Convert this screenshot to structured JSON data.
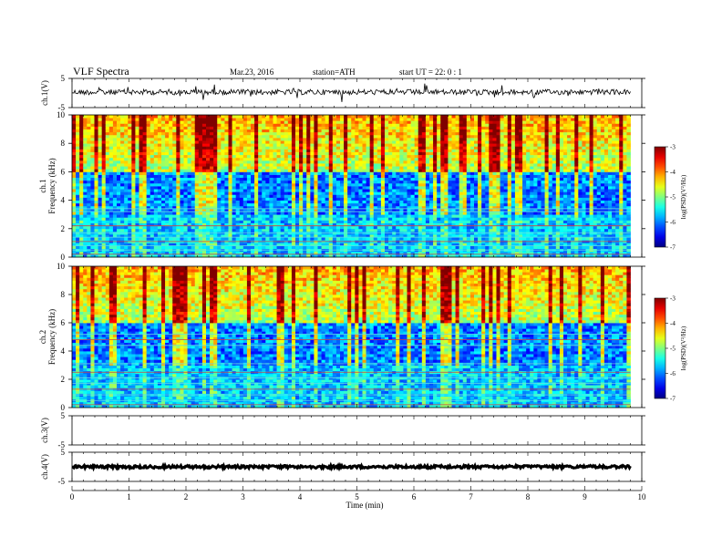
{
  "header": {
    "title": "VLF Spectra",
    "date": "Mar.23, 2016",
    "station": "station=ATH",
    "start": "start UT =  22: 0 : 1"
  },
  "chart_data": {
    "type": "heatmap",
    "x_axis": {
      "label": "Time (min)",
      "range": [
        0,
        10
      ],
      "ticks": [
        "0",
        "1",
        "2",
        "3",
        "4",
        "5",
        "6",
        "7",
        "8",
        "9",
        "10"
      ],
      "data_end": 9.8
    },
    "panels": [
      {
        "id": "ch1-wave",
        "type": "line",
        "ylabel": "ch.1(V)",
        "ylim": [
          -5,
          5
        ],
        "ticks": [
          "5",
          "-5"
        ],
        "mean_level": 0.3
      },
      {
        "id": "ch1-spec",
        "type": "heatmap",
        "ylabel_top": "ch.1",
        "ylabel": "Frequency (kHz)",
        "ylim": [
          0,
          10
        ],
        "ticks": [
          "0",
          "2",
          "4",
          "6",
          "8",
          "10"
        ],
        "colorbar": {
          "label": "log(PSD)(V²/Hz)",
          "range": [
            -7,
            -3
          ],
          "ticks": [
            "-3",
            "-4",
            "-5",
            "-6",
            "-7"
          ]
        }
      },
      {
        "id": "ch2-spec",
        "type": "heatmap",
        "ylabel_top": "ch.2",
        "ylabel": "Frequency (kHz)",
        "ylim": [
          0,
          10
        ],
        "ticks": [
          "0",
          "2",
          "4",
          "6",
          "8",
          "10"
        ],
        "colorbar": {
          "label": "log(PSD)(V²/Hz)",
          "range": [
            -7,
            -3
          ],
          "ticks": [
            "-3",
            "-4",
            "-5",
            "-6",
            "-7"
          ]
        }
      },
      {
        "id": "ch3-wave",
        "type": "line",
        "ylabel": "ch.3(V)",
        "ylim": [
          -5,
          5
        ],
        "ticks": [
          "5",
          "-5"
        ]
      },
      {
        "id": "ch4-wave",
        "type": "line",
        "ylabel": "ch.4(V)",
        "ylim": [
          -5,
          5
        ],
        "ticks": [
          "5",
          "-5"
        ],
        "mean_level": 0
      }
    ],
    "grid": false
  }
}
